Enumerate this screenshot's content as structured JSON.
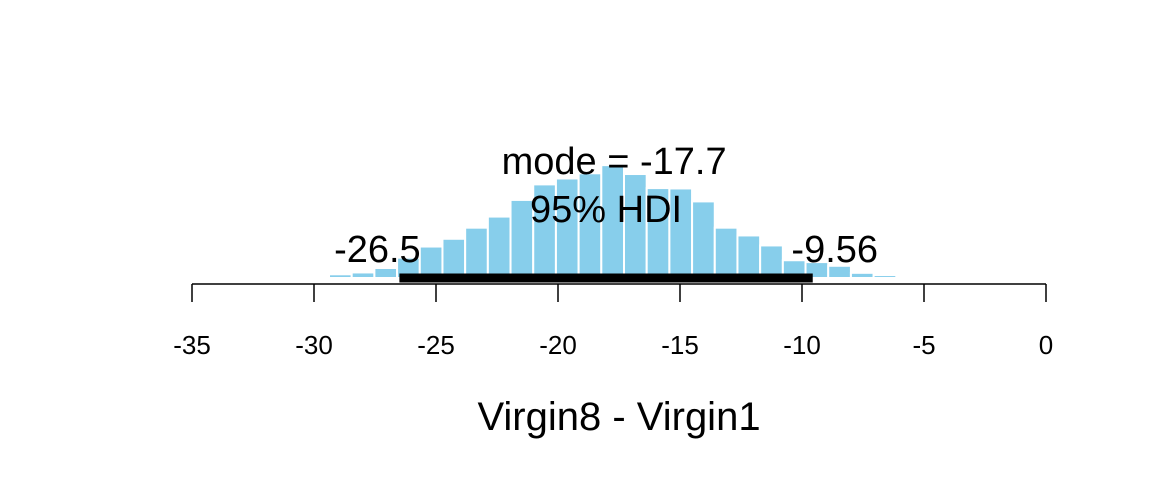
{
  "chart_data": {
    "type": "bar",
    "title": "",
    "xlabel": "Virgin8 - Virgin1",
    "ylabel": "",
    "xlim": [
      -35,
      0
    ],
    "xticks": [
      -35,
      -30,
      -25,
      -20,
      -15,
      -10,
      -5,
      0
    ],
    "xtick_labels": [
      "-35",
      "-30",
      "-25",
      "-20",
      "-15",
      "-10",
      "-5",
      "0"
    ],
    "bin_width": 0.93,
    "bins": [
      {
        "x": -29.85,
        "y": 0.3
      },
      {
        "x": -28.92,
        "y": 1.0
      },
      {
        "x": -27.99,
        "y": 1.5
      },
      {
        "x": -27.06,
        "y": 2.7
      },
      {
        "x": -26.13,
        "y": 5.5
      },
      {
        "x": -25.2,
        "y": 8.5
      },
      {
        "x": -24.27,
        "y": 10.6
      },
      {
        "x": -23.34,
        "y": 13.6
      },
      {
        "x": -22.41,
        "y": 16.6
      },
      {
        "x": -21.48,
        "y": 21.1
      },
      {
        "x": -20.55,
        "y": 25.3
      },
      {
        "x": -19.62,
        "y": 26.9
      },
      {
        "x": -18.69,
        "y": 28.3
      },
      {
        "x": -17.76,
        "y": 30.5
      },
      {
        "x": -16.83,
        "y": 28.1
      },
      {
        "x": -15.9,
        "y": 24.3
      },
      {
        "x": -14.97,
        "y": 24.2
      },
      {
        "x": -14.04,
        "y": 20.7
      },
      {
        "x": -13.11,
        "y": 13.6
      },
      {
        "x": -12.18,
        "y": 11.5
      },
      {
        "x": -11.25,
        "y": 8.8
      },
      {
        "x": -10.32,
        "y": 4.8
      },
      {
        "x": -9.39,
        "y": 4.3
      },
      {
        "x": -8.46,
        "y": 3.3
      },
      {
        "x": -7.53,
        "y": 1.4
      },
      {
        "x": -6.6,
        "y": 0.8
      }
    ],
    "bar_color": "#87CEEB",
    "bar_edge_color": "#ffffff",
    "hdi": {
      "low": -26.5,
      "high": -9.56,
      "low_label": "-26.5",
      "high_label": "-9.56",
      "label": "95% HDI",
      "color": "#000000"
    },
    "mode": {
      "value": -17.7,
      "label": "mode = -17.7"
    }
  }
}
